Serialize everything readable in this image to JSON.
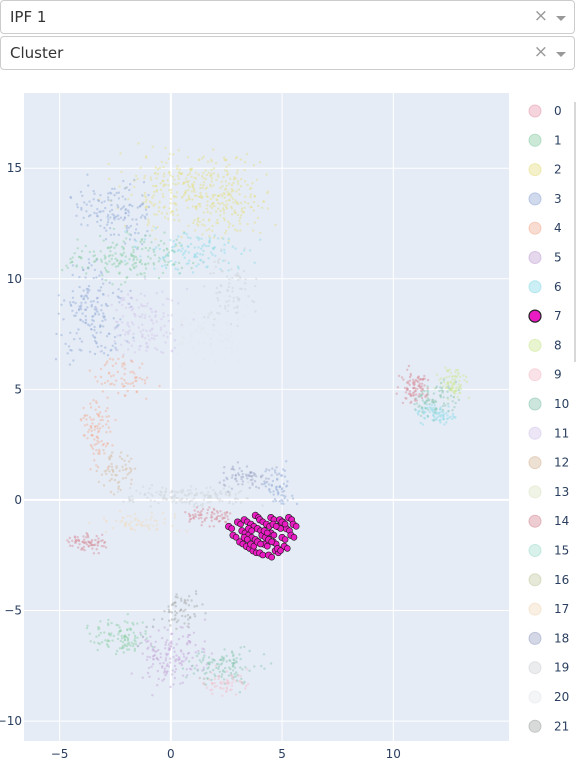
{
  "selects": [
    {
      "value": "IPF 1",
      "clear": "×"
    },
    {
      "value": "Cluster",
      "clear": "×"
    }
  ],
  "chart_data": {
    "type": "scatter",
    "title": "",
    "xlabel": "",
    "ylabel": "",
    "xlim": [
      -6.6,
      15.2
    ],
    "ylim": [
      -10.9,
      18.4
    ],
    "x_ticks": [
      -5,
      0,
      5,
      10
    ],
    "y_ticks": [
      -10,
      -5,
      0,
      5,
      10,
      15
    ],
    "grid": true,
    "legend_position": "right",
    "highlighted_series": "7",
    "series": [
      {
        "name": "0",
        "color": "#e8a0b4"
      },
      {
        "name": "1",
        "color": "#8fcfa8"
      },
      {
        "name": "2",
        "color": "#e6e08a"
      },
      {
        "name": "3",
        "color": "#98aed8"
      },
      {
        "name": "4",
        "color": "#f2b29a"
      },
      {
        "name": "5",
        "color": "#c5a8d8"
      },
      {
        "name": "6",
        "color": "#8fdce8"
      },
      {
        "name": "7",
        "color": "#e81cc2",
        "points": [
          [
            2.6,
            -1.2
          ],
          [
            2.8,
            -1.6
          ],
          [
            3.0,
            -1.0
          ],
          [
            3.1,
            -1.9
          ],
          [
            3.2,
            -1.4
          ],
          [
            3.3,
            -0.9
          ],
          [
            3.4,
            -2.1
          ],
          [
            3.5,
            -1.6
          ],
          [
            3.6,
            -1.1
          ],
          [
            3.7,
            -2.3
          ],
          [
            3.8,
            -0.7
          ],
          [
            3.8,
            -1.8
          ],
          [
            3.9,
            -1.3
          ],
          [
            4.0,
            -2.4
          ],
          [
            4.0,
            -0.9
          ],
          [
            4.1,
            -1.6
          ],
          [
            4.2,
            -2.0
          ],
          [
            4.3,
            -1.1
          ],
          [
            4.4,
            -2.5
          ],
          [
            4.5,
            -1.5
          ],
          [
            4.5,
            -0.8
          ],
          [
            4.6,
            -1.9
          ],
          [
            4.7,
            -2.3
          ],
          [
            4.8,
            -1.2
          ],
          [
            4.9,
            -0.9
          ],
          [
            5.0,
            -1.7
          ],
          [
            5.1,
            -2.1
          ],
          [
            5.2,
            -1.3
          ],
          [
            5.3,
            -0.8
          ],
          [
            5.4,
            -1.6
          ],
          [
            5.5,
            -1.1
          ],
          [
            3.3,
            -1.7
          ],
          [
            3.6,
            -2.0
          ],
          [
            4.2,
            -1.4
          ],
          [
            4.6,
            -1.1
          ],
          [
            5.0,
            -1.0
          ],
          [
            3.9,
            -1.9
          ],
          [
            4.4,
            -1.8
          ],
          [
            4.8,
            -2.2
          ],
          [
            3.5,
            -1.3
          ]
        ]
      },
      {
        "name": "8",
        "color": "#cfe89a"
      },
      {
        "name": "9",
        "color": "#f4c0cc"
      },
      {
        "name": "10",
        "color": "#8fc8b4"
      },
      {
        "name": "11",
        "color": "#d4c8ec"
      },
      {
        "name": "12",
        "color": "#d8bca0"
      },
      {
        "name": "13",
        "color": "#dde6c8"
      },
      {
        "name": "14",
        "color": "#d8909c"
      },
      {
        "name": "15",
        "color": "#a8e0d0"
      },
      {
        "name": "16",
        "color": "#c8cca8"
      },
      {
        "name": "17",
        "color": "#f2dcc0"
      },
      {
        "name": "18",
        "color": "#a0a8c8"
      },
      {
        "name": "19",
        "color": "#d0d4d8"
      },
      {
        "name": "20",
        "color": "#e4e8ec"
      },
      {
        "name": "21",
        "color": "#a8aaaa"
      }
    ]
  }
}
